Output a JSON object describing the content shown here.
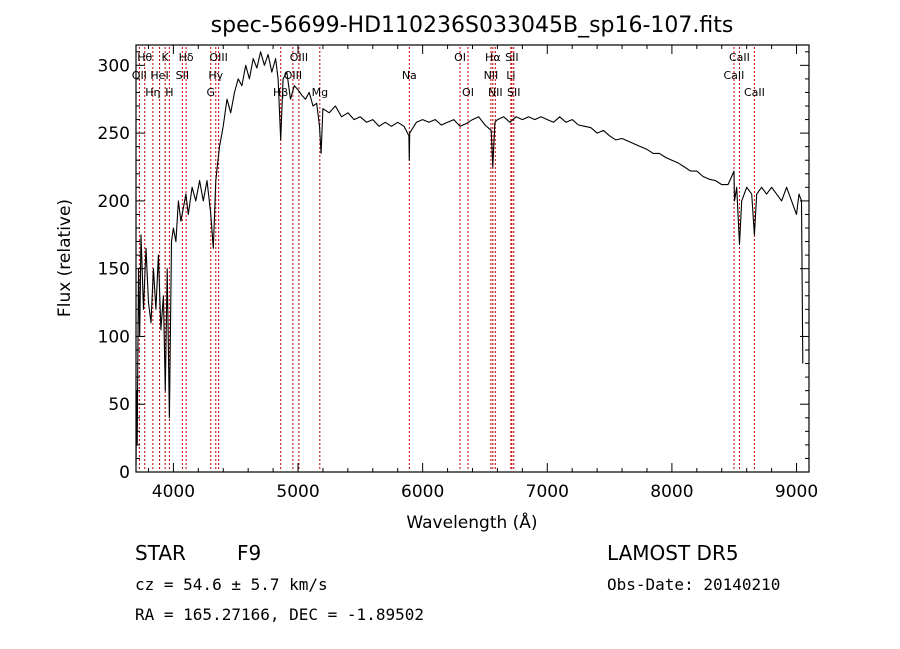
{
  "chart_data": {
    "type": "line",
    "title": "spec-56699-HD110236S033045B_sp16-107.fits",
    "xlabel": "Wavelength (Å)",
    "ylabel": "Flux (relative)",
    "xlim": [
      3700,
      9100
    ],
    "ylim": [
      0,
      315
    ],
    "xticks": [
      4000,
      5000,
      6000,
      7000,
      8000,
      9000
    ],
    "yticks": [
      0,
      50,
      100,
      150,
      200,
      250,
      300
    ],
    "grid": false,
    "series": [
      {
        "color": "#000000",
        "points": [
          [
            3700,
            5
          ],
          [
            3705,
            60
          ],
          [
            3710,
            20
          ],
          [
            3720,
            150
          ],
          [
            3730,
            100
          ],
          [
            3740,
            175
          ],
          [
            3760,
            120
          ],
          [
            3780,
            165
          ],
          [
            3800,
            125
          ],
          [
            3820,
            110
          ],
          [
            3840,
            150
          ],
          [
            3860,
            120
          ],
          [
            3880,
            160
          ],
          [
            3900,
            105
          ],
          [
            3920,
            130
          ],
          [
            3935,
            60
          ],
          [
            3950,
            150
          ],
          [
            3968,
            40
          ],
          [
            3985,
            170
          ],
          [
            4000,
            180
          ],
          [
            4020,
            170
          ],
          [
            4040,
            200
          ],
          [
            4060,
            185
          ],
          [
            4080,
            195
          ],
          [
            4100,
            205
          ],
          [
            4120,
            190
          ],
          [
            4150,
            210
          ],
          [
            4180,
            200
          ],
          [
            4210,
            215
          ],
          [
            4240,
            200
          ],
          [
            4270,
            215
          ],
          [
            4300,
            190
          ],
          [
            4320,
            165
          ],
          [
            4340,
            215
          ],
          [
            4370,
            240
          ],
          [
            4400,
            255
          ],
          [
            4430,
            275
          ],
          [
            4460,
            265
          ],
          [
            4490,
            280
          ],
          [
            4520,
            290
          ],
          [
            4550,
            285
          ],
          [
            4580,
            300
          ],
          [
            4610,
            290
          ],
          [
            4640,
            305
          ],
          [
            4670,
            298
          ],
          [
            4700,
            310
          ],
          [
            4730,
            300
          ],
          [
            4760,
            308
          ],
          [
            4790,
            295
          ],
          [
            4820,
            305
          ],
          [
            4840,
            290
          ],
          [
            4861,
            245
          ],
          [
            4880,
            290
          ],
          [
            4910,
            295
          ],
          [
            4940,
            275
          ],
          [
            4970,
            285
          ],
          [
            5000,
            282
          ],
          [
            5030,
            278
          ],
          [
            5060,
            275
          ],
          [
            5090,
            280
          ],
          [
            5120,
            270
          ],
          [
            5150,
            272
          ],
          [
            5172,
            255
          ],
          [
            5185,
            235
          ],
          [
            5200,
            268
          ],
          [
            5250,
            265
          ],
          [
            5300,
            270
          ],
          [
            5350,
            262
          ],
          [
            5400,
            265
          ],
          [
            5450,
            260
          ],
          [
            5500,
            262
          ],
          [
            5550,
            258
          ],
          [
            5600,
            260
          ],
          [
            5650,
            255
          ],
          [
            5700,
            258
          ],
          [
            5750,
            255
          ],
          [
            5800,
            258
          ],
          [
            5850,
            255
          ],
          [
            5890,
            248
          ],
          [
            5893,
            230
          ],
          [
            5896,
            250
          ],
          [
            5950,
            258
          ],
          [
            6000,
            260
          ],
          [
            6050,
            258
          ],
          [
            6100,
            260
          ],
          [
            6150,
            256
          ],
          [
            6200,
            258
          ],
          [
            6250,
            260
          ],
          [
            6300,
            255
          ],
          [
            6350,
            257
          ],
          [
            6400,
            260
          ],
          [
            6450,
            262
          ],
          [
            6500,
            256
          ],
          [
            6550,
            252
          ],
          [
            6563,
            225
          ],
          [
            6580,
            258
          ],
          [
            6600,
            260
          ],
          [
            6650,
            262
          ],
          [
            6700,
            258
          ],
          [
            6750,
            262
          ],
          [
            6800,
            260
          ],
          [
            6850,
            262
          ],
          [
            6900,
            260
          ],
          [
            6950,
            262
          ],
          [
            7000,
            260
          ],
          [
            7050,
            258
          ],
          [
            7100,
            262
          ],
          [
            7150,
            258
          ],
          [
            7200,
            260
          ],
          [
            7250,
            256
          ],
          [
            7300,
            255
          ],
          [
            7350,
            254
          ],
          [
            7400,
            250
          ],
          [
            7450,
            252
          ],
          [
            7500,
            248
          ],
          [
            7550,
            245
          ],
          [
            7600,
            246
          ],
          [
            7650,
            244
          ],
          [
            7700,
            242
          ],
          [
            7750,
            240
          ],
          [
            7800,
            238
          ],
          [
            7850,
            235
          ],
          [
            7900,
            235
          ],
          [
            7950,
            232
          ],
          [
            8000,
            230
          ],
          [
            8050,
            228
          ],
          [
            8100,
            225
          ],
          [
            8150,
            222
          ],
          [
            8200,
            222
          ],
          [
            8250,
            218
          ],
          [
            8300,
            216
          ],
          [
            8350,
            215
          ],
          [
            8400,
            212
          ],
          [
            8450,
            212
          ],
          [
            8480,
            218
          ],
          [
            8498,
            222
          ],
          [
            8502,
            200
          ],
          [
            8520,
            210
          ],
          [
            8542,
            168
          ],
          [
            8560,
            200
          ],
          [
            8600,
            210
          ],
          [
            8640,
            205
          ],
          [
            8662,
            175
          ],
          [
            8680,
            205
          ],
          [
            8720,
            210
          ],
          [
            8760,
            205
          ],
          [
            8800,
            210
          ],
          [
            8840,
            205
          ],
          [
            8880,
            200
          ],
          [
            8920,
            210
          ],
          [
            8960,
            200
          ],
          [
            9000,
            190
          ],
          [
            9020,
            205
          ],
          [
            9040,
            200
          ],
          [
            9050,
            80
          ]
        ]
      }
    ],
    "marker_color": "#c00000",
    "line_markers": [
      {
        "wave": 3727,
        "label": "OII",
        "tier": 1
      },
      {
        "wave": 3770,
        "label": "Hθ",
        "tier": 0
      },
      {
        "wave": 3835,
        "label": "Hη",
        "tier": 2
      },
      {
        "wave": 3889,
        "label": "HeI",
        "tier": 1
      },
      {
        "wave": 3934,
        "label": "K",
        "tier": 0
      },
      {
        "wave": 3968,
        "label": "H",
        "tier": 2
      },
      {
        "wave": 4072,
        "label": "SII",
        "tier": 1
      },
      {
        "wave": 4102,
        "label": "Hδ",
        "tier": 0
      },
      {
        "wave": 4300,
        "label": "G",
        "tier": 2
      },
      {
        "wave": 4340,
        "label": "Hγ",
        "tier": 1
      },
      {
        "wave": 4363,
        "label": "OIII",
        "tier": 0
      },
      {
        "wave": 4861,
        "label": "Hβ",
        "tier": 2
      },
      {
        "wave": 4959,
        "label": "OIII",
        "tier": 1
      },
      {
        "wave": 5007,
        "label": "OIII",
        "tier": 0
      },
      {
        "wave": 5175,
        "label": "Mg",
        "tier": 2
      },
      {
        "wave": 5893,
        "label": "Na",
        "tier": 1
      },
      {
        "wave": 6300,
        "label": "OI",
        "tier": 0
      },
      {
        "wave": 6364,
        "label": "OI",
        "tier": 2
      },
      {
        "wave": 6548,
        "label": "NII",
        "tier": 1
      },
      {
        "wave": 6563,
        "label": "Hα",
        "tier": 0
      },
      {
        "wave": 6583,
        "label": "NII",
        "tier": 2
      },
      {
        "wave": 6708,
        "label": "Li",
        "tier": 1
      },
      {
        "wave": 6716,
        "label": "SII",
        "tier": 0
      },
      {
        "wave": 6731,
        "label": "SII",
        "tier": 2
      },
      {
        "wave": 8498,
        "label": "CaII",
        "tier": 1
      },
      {
        "wave": 8542,
        "label": "CaII",
        "tier": 0
      },
      {
        "wave": 8662,
        "label": "CaII",
        "tier": 2
      }
    ]
  },
  "info": {
    "object_class": "STAR",
    "subclass": "F9",
    "survey": "LAMOST DR5",
    "redshift": "cz = 54.6 ± 5.7 km/s",
    "obs_date": "Obs-Date: 20140210",
    "coords": "RA = 165.27166, DEC =  -1.89502"
  }
}
